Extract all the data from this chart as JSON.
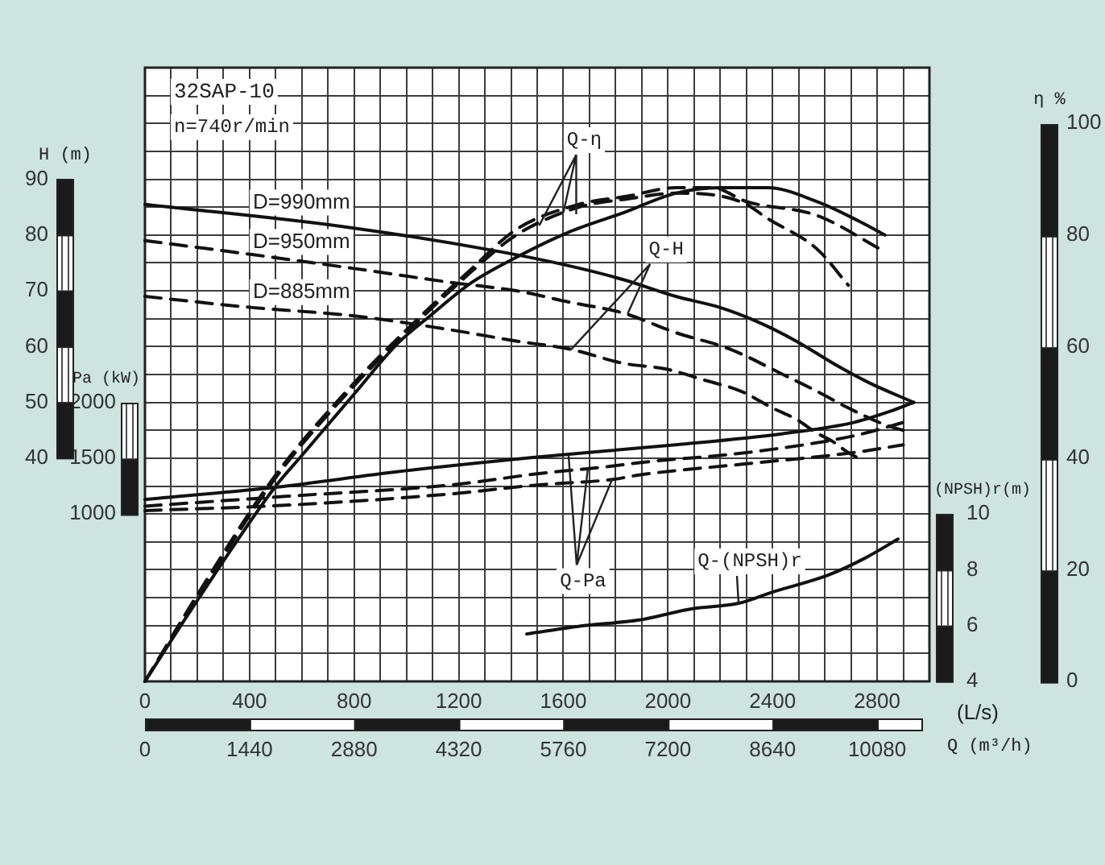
{
  "chart_data": [
    {
      "type": "line",
      "title": "32SAP-10",
      "subtitle": "n=740r/min",
      "xlabel": "(L/s)",
      "x2label": "Q (m³/h)",
      "ylabel": "H (m)",
      "y2label": "η %",
      "y3label": "Pa (kW)",
      "xlim": [
        0,
        3000
      ],
      "xticks": [
        0,
        {
          "value": 100,
          "label": null
        },
        {
          "value": 200,
          "label": null
        },
        {
          "value": 300,
          "label": null
        },
        400,
        {
          "value": 500,
          "label": null
        },
        {
          "value": 600,
          "label": null
        },
        {
          "value": 700,
          "label": null
        },
        800,
        {
          "value": 900,
          "label": null
        },
        {
          "value": 1000,
          "label": null
        },
        {
          "value": 1100,
          "label": null
        },
        1200,
        {
          "value": 1300,
          "label": null
        },
        {
          "value": 1400,
          "label": null
        },
        {
          "value": 1500,
          "label": null
        },
        1600,
        {
          "value": 1700,
          "label": null
        },
        {
          "value": 1800,
          "label": null
        },
        {
          "value": 1900,
          "label": null
        },
        2000,
        {
          "value": 2100,
          "label": null
        },
        {
          "value": 2200,
          "label": null
        },
        {
          "value": 2300,
          "label": null
        },
        2400,
        {
          "value": 2500,
          "label": null
        },
        {
          "value": 2600,
          "label": null
        },
        {
          "value": 2700,
          "label": null
        },
        2800,
        {
          "value": 2900,
          "label": null
        }
      ],
      "x2lim": [
        0,
        10800
      ],
      "x2ticks": [
        0,
        1440,
        2880,
        4320,
        5760,
        7200,
        8640,
        10080
      ],
      "ylim": [
        0,
        110
      ],
      "yticks": [
        {
          "value": 5,
          "label": null
        },
        {
          "value": 10,
          "label": null
        },
        {
          "value": 15,
          "label": null
        },
        {
          "value": 20,
          "label": null
        },
        {
          "value": 25,
          "label": null
        },
        {
          "value": 30,
          "label": null
        },
        {
          "value": 35,
          "label": null
        },
        40,
        {
          "value": 45,
          "label": null
        },
        50,
        {
          "value": 55,
          "label": null
        },
        60,
        {
          "value": 65,
          "label": null
        },
        70,
        {
          "value": 75,
          "label": null
        },
        80,
        {
          "value": 85,
          "label": null
        },
        90,
        {
          "value": 95,
          "label": null
        },
        {
          "value": 100,
          "label": null
        },
        {
          "value": 105,
          "label": null
        }
      ],
      "y2lim": [
        0,
        110
      ],
      "y2ticks": [
        0,
        20,
        40,
        60,
        80,
        100
      ],
      "y3lim": [
        -500,
        5000
      ],
      "y3ticks": [
        1000,
        1500,
        2000
      ],
      "grid": true,
      "series": [
        {
          "name": "D=990mm",
          "color": "#111111",
          "line_style": "solid",
          "x": [
            0,
            760,
            1360,
            1620,
            1830,
            2030,
            2200,
            2340,
            2490,
            2650,
            2770,
            2940
          ],
          "values": [
            85.5,
            81.5,
            77,
            74.5,
            72,
            69,
            67,
            64.5,
            61,
            56.5,
            53.5,
            50
          ]
        },
        {
          "name": "D=950mm",
          "color": "#111111",
          "line_style": "dashed",
          "x": [
            0,
            410,
            800,
            1170,
            1420,
            1620,
            1830,
            2030,
            2240,
            2440,
            2570,
            2690,
            2830,
            2900
          ],
          "values": [
            79,
            76.5,
            74,
            71.5,
            70,
            68,
            66,
            62.5,
            59.5,
            55,
            52,
            49,
            46,
            45
          ]
        },
        {
          "name": "D=885mm",
          "color": "#111111",
          "line_style": "dashed",
          "x": [
            0,
            410,
            800,
            1170,
            1420,
            1630,
            1830,
            1990,
            2140,
            2280,
            2400,
            2490,
            2570,
            2630,
            2690,
            2750
          ],
          "values": [
            69,
            67,
            65.5,
            63,
            61,
            59.5,
            57,
            56,
            54,
            52,
            49,
            47,
            44.5,
            43,
            41,
            39.5
          ]
        },
        {
          "color": "#111111",
          "line_style": "solid",
          "axis": "y2",
          "x": [
            0,
            200,
            500,
            600,
            800,
            965,
            1090,
            1250,
            1420,
            1620,
            1830,
            2030,
            2200,
            2380,
            2570,
            2730,
            2830
          ],
          "values": [
            0,
            14.5,
            35,
            40.5,
            51.5,
            60.5,
            65.5,
            71.5,
            76,
            80.5,
            84,
            87.5,
            88.5,
            88.5,
            86,
            82.5,
            80
          ]
        },
        {
          "color": "#111111",
          "line_style": "dashed",
          "axis": "y2",
          "x": [
            0,
            200,
            500,
            800,
            1000,
            1250,
            1420,
            1660,
            1850,
            2030,
            2170,
            2300,
            2570,
            2830
          ],
          "values": [
            0,
            15.5,
            37,
            53.5,
            63,
            74,
            81,
            85.5,
            87,
            88.5,
            88.5,
            86,
            83.5,
            77
          ]
        },
        {
          "color": "#111111",
          "line_style": "dashed",
          "axis": "y2",
          "x": [
            0,
            200,
            500,
            800,
            1000,
            1250,
            1420,
            1660,
            1850,
            2030,
            2200,
            2300,
            2380,
            2570,
            2690
          ],
          "values": [
            0,
            15,
            36.5,
            53,
            62.5,
            73.5,
            80,
            85,
            86.5,
            87.5,
            87,
            85.5,
            83,
            77.5,
            71
          ]
        },
        {
          "color": "#111111",
          "line_style": "solid",
          "axis": "y3",
          "x": [
            0,
            500,
            970,
            1500,
            2030,
            2440,
            2710,
            2850,
            2940
          ],
          "values": [
            1130,
            1240,
            1380,
            1510,
            1620,
            1720,
            1820,
            1920,
            2000
          ]
        },
        {
          "color": "#111111",
          "line_style": "dashed",
          "axis": "y3",
          "x": [
            0,
            550,
            1170,
            1500,
            1790,
            1890,
            2300,
            2710,
            2900
          ],
          "values": [
            1070,
            1160,
            1260,
            1360,
            1430,
            1460,
            1550,
            1700,
            1820
          ]
        },
        {
          "color": "#111111",
          "line_style": "dashed",
          "axis": "y3",
          "x": [
            0,
            550,
            1170,
            1500,
            1790,
            1890,
            2300,
            2710,
            2900
          ],
          "values": [
            1030,
            1080,
            1180,
            1260,
            1310,
            1350,
            1450,
            1550,
            1620
          ]
        }
      ],
      "annotations": [
        {
          "text": "Q-η",
          "x": 1600,
          "y": 84
        },
        {
          "text": "Q-H",
          "x": 1630,
          "y": 59.5
        },
        {
          "text": "Q-Pa",
          "x": 1620,
          "y": 40.5
        }
      ]
    },
    {
      "type": "line",
      "ylabel": "(NPSH)r(m)",
      "xlim": [
        0,
        3000
      ],
      "ylim": [
        4,
        26
      ],
      "yticks": [
        4,
        6,
        8,
        10
      ],
      "tick_labels": "y",
      "series": [
        {
          "color": "#111111",
          "line_style": "solid",
          "x": [
            1460,
            1680,
            1890,
            2090,
            2270,
            2400,
            2610,
            2750,
            2880
          ],
          "values": [
            5.7,
            6,
            6.2,
            6.6,
            6.8,
            7.2,
            7.8,
            8.4,
            9.1
          ]
        }
      ],
      "annotations": [
        {
          "text": "Q-(NPSH)r",
          "x": 2270,
          "y": 6.8
        }
      ]
    }
  ]
}
